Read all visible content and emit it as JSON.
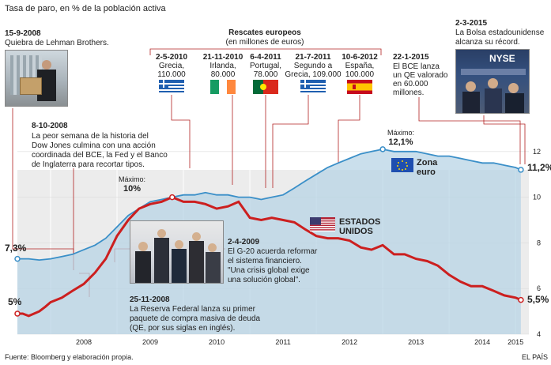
{
  "chart_data": {
    "type": "line",
    "title": "Tasa de paro, en % de la población activa",
    "ylim": [
      4,
      13
    ],
    "y_ticks": [
      "4",
      "6",
      "8",
      "10",
      "12"
    ],
    "x_ticks": [
      "2008",
      "2009",
      "2010",
      "2011",
      "2012",
      "2013",
      "2014",
      "2015"
    ],
    "series": [
      {
        "name": "Zona euro",
        "color": "#3a8fc8",
        "start_label": "7,3%",
        "end_label": "11,2%",
        "max_label": "Máximo:",
        "max_value_label": "12,1%",
        "points": [
          [
            2007.5,
            7.3
          ],
          [
            2007.67,
            7.3
          ],
          [
            2007.83,
            7.25
          ],
          [
            2008.0,
            7.3
          ],
          [
            2008.17,
            7.4
          ],
          [
            2008.33,
            7.5
          ],
          [
            2008.5,
            7.7
          ],
          [
            2008.67,
            7.9
          ],
          [
            2008.83,
            8.2
          ],
          [
            2009.0,
            8.7
          ],
          [
            2009.17,
            9.2
          ],
          [
            2009.33,
            9.5
          ],
          [
            2009.5,
            9.8
          ],
          [
            2009.67,
            9.9
          ],
          [
            2009.83,
            10.0
          ],
          [
            2010.0,
            10.1
          ],
          [
            2010.17,
            10.1
          ],
          [
            2010.33,
            10.2
          ],
          [
            2010.5,
            10.1
          ],
          [
            2010.67,
            10.1
          ],
          [
            2010.83,
            10.0
          ],
          [
            2011.0,
            10.0
          ],
          [
            2011.17,
            9.9
          ],
          [
            2011.33,
            10.0
          ],
          [
            2011.5,
            10.1
          ],
          [
            2011.67,
            10.4
          ],
          [
            2011.83,
            10.7
          ],
          [
            2012.0,
            11.0
          ],
          [
            2012.17,
            11.3
          ],
          [
            2012.33,
            11.5
          ],
          [
            2012.5,
            11.7
          ],
          [
            2012.67,
            11.9
          ],
          [
            2012.83,
            12.0
          ],
          [
            2013.0,
            12.1
          ],
          [
            2013.17,
            12.0
          ],
          [
            2013.33,
            12.0
          ],
          [
            2013.5,
            12.0
          ],
          [
            2013.67,
            11.9
          ],
          [
            2013.83,
            11.8
          ],
          [
            2014.0,
            11.8
          ],
          [
            2014.17,
            11.7
          ],
          [
            2014.33,
            11.6
          ],
          [
            2014.5,
            11.5
          ],
          [
            2014.67,
            11.5
          ],
          [
            2014.83,
            11.4
          ],
          [
            2015.0,
            11.3
          ],
          [
            2015.08,
            11.2
          ]
        ]
      },
      {
        "name": "Estados Unidos",
        "color": "#cc1f1f",
        "start_label": "5%",
        "end_label": "5,5%",
        "max_label": "Máximo:",
        "max_value_label": "10%",
        "points": [
          [
            2007.5,
            4.9
          ],
          [
            2007.58,
            4.9
          ],
          [
            2007.67,
            4.8
          ],
          [
            2007.75,
            4.9
          ],
          [
            2007.83,
            5.0
          ],
          [
            2007.92,
            5.2
          ],
          [
            2008.0,
            5.4
          ],
          [
            2008.17,
            5.6
          ],
          [
            2008.33,
            5.9
          ],
          [
            2008.5,
            6.2
          ],
          [
            2008.67,
            6.7
          ],
          [
            2008.83,
            7.3
          ],
          [
            2009.0,
            8.3
          ],
          [
            2009.17,
            9.0
          ],
          [
            2009.33,
            9.5
          ],
          [
            2009.5,
            9.7
          ],
          [
            2009.67,
            9.8
          ],
          [
            2009.83,
            10.0
          ],
          [
            2010.0,
            9.8
          ],
          [
            2010.17,
            9.8
          ],
          [
            2010.33,
            9.7
          ],
          [
            2010.5,
            9.5
          ],
          [
            2010.67,
            9.6
          ],
          [
            2010.83,
            9.8
          ],
          [
            2011.0,
            9.1
          ],
          [
            2011.17,
            9.0
          ],
          [
            2011.33,
            9.1
          ],
          [
            2011.5,
            9.0
          ],
          [
            2011.67,
            8.9
          ],
          [
            2011.83,
            8.6
          ],
          [
            2012.0,
            8.3
          ],
          [
            2012.17,
            8.2
          ],
          [
            2012.33,
            8.2
          ],
          [
            2012.5,
            8.1
          ],
          [
            2012.67,
            7.8
          ],
          [
            2012.83,
            7.7
          ],
          [
            2013.0,
            7.9
          ],
          [
            2013.17,
            7.5
          ],
          [
            2013.33,
            7.5
          ],
          [
            2013.5,
            7.3
          ],
          [
            2013.67,
            7.2
          ],
          [
            2013.83,
            7.0
          ],
          [
            2014.0,
            6.6
          ],
          [
            2014.17,
            6.3
          ],
          [
            2014.33,
            6.1
          ],
          [
            2014.5,
            6.1
          ],
          [
            2014.67,
            5.9
          ],
          [
            2014.83,
            5.7
          ],
          [
            2015.0,
            5.6
          ],
          [
            2015.08,
            5.5
          ]
        ]
      }
    ]
  },
  "legend": {
    "euro_label_1": "Zona",
    "euro_label_2": "euro",
    "us_label_1": "ESTADOS",
    "us_label_2": "UNIDOS"
  },
  "rescates": {
    "title": "Rescates europeos",
    "subtitle": "(en millones de euros)",
    "items": [
      {
        "date": "2-5-2010",
        "line1": "Grecia,",
        "line2": "110.000",
        "line3": "",
        "flag": "greece"
      },
      {
        "date": "21-11-2010",
        "line1": "Irlanda,",
        "line2": "80.000",
        "line3": "",
        "flag": "ireland"
      },
      {
        "date": "6-4-2011",
        "line1": "Portugal,",
        "line2": "78.000",
        "line3": "",
        "flag": "portugal"
      },
      {
        "date": "21-7-2011",
        "line1": "Segundo a",
        "line2": "Grecia, 109.000",
        "line3": "",
        "flag": "greece"
      },
      {
        "date": "10-6-2012",
        "line1": "España,",
        "line2": "100.000",
        "line3": "",
        "flag": "spain"
      }
    ]
  },
  "annotations": {
    "lehman_date": "15-9-2008",
    "lehman_text": "Quiebra de Lehman Brothers.",
    "dow_date": "8-10-2008",
    "dow_lines": [
      "La peor semana de la historia del",
      "Dow Jones culmina con una acción",
      "coordinada del BCE, la Fed y el Banco",
      "de Inglaterra para recortar tipos."
    ],
    "fed_date": "25-11-2008",
    "fed_lines": [
      "La Reserva Federal lanza su primer",
      "paquete de compra masiva de deuda",
      "(QE, por sus siglas en inglés)."
    ],
    "g20_date": "2-4-2009",
    "g20_lines": [
      "El G-20 acuerda reformar",
      "el sistema financiero.",
      "\"Una crisis global exige",
      "una solución global\"."
    ],
    "bce_date": "22-1-2015",
    "bce_lines": [
      "El BCE lanza",
      "un QE valorado",
      "en 60.000",
      "millones."
    ],
    "bolsa_date": "2-3-2015",
    "bolsa_lines": [
      "La Bolsa estadounidense",
      "alcanza su récord."
    ],
    "nyse_text": "NYSE"
  },
  "footer": {
    "source": "Fuente: Bloomberg y elaboración propia.",
    "brand": "EL PAÍS"
  }
}
